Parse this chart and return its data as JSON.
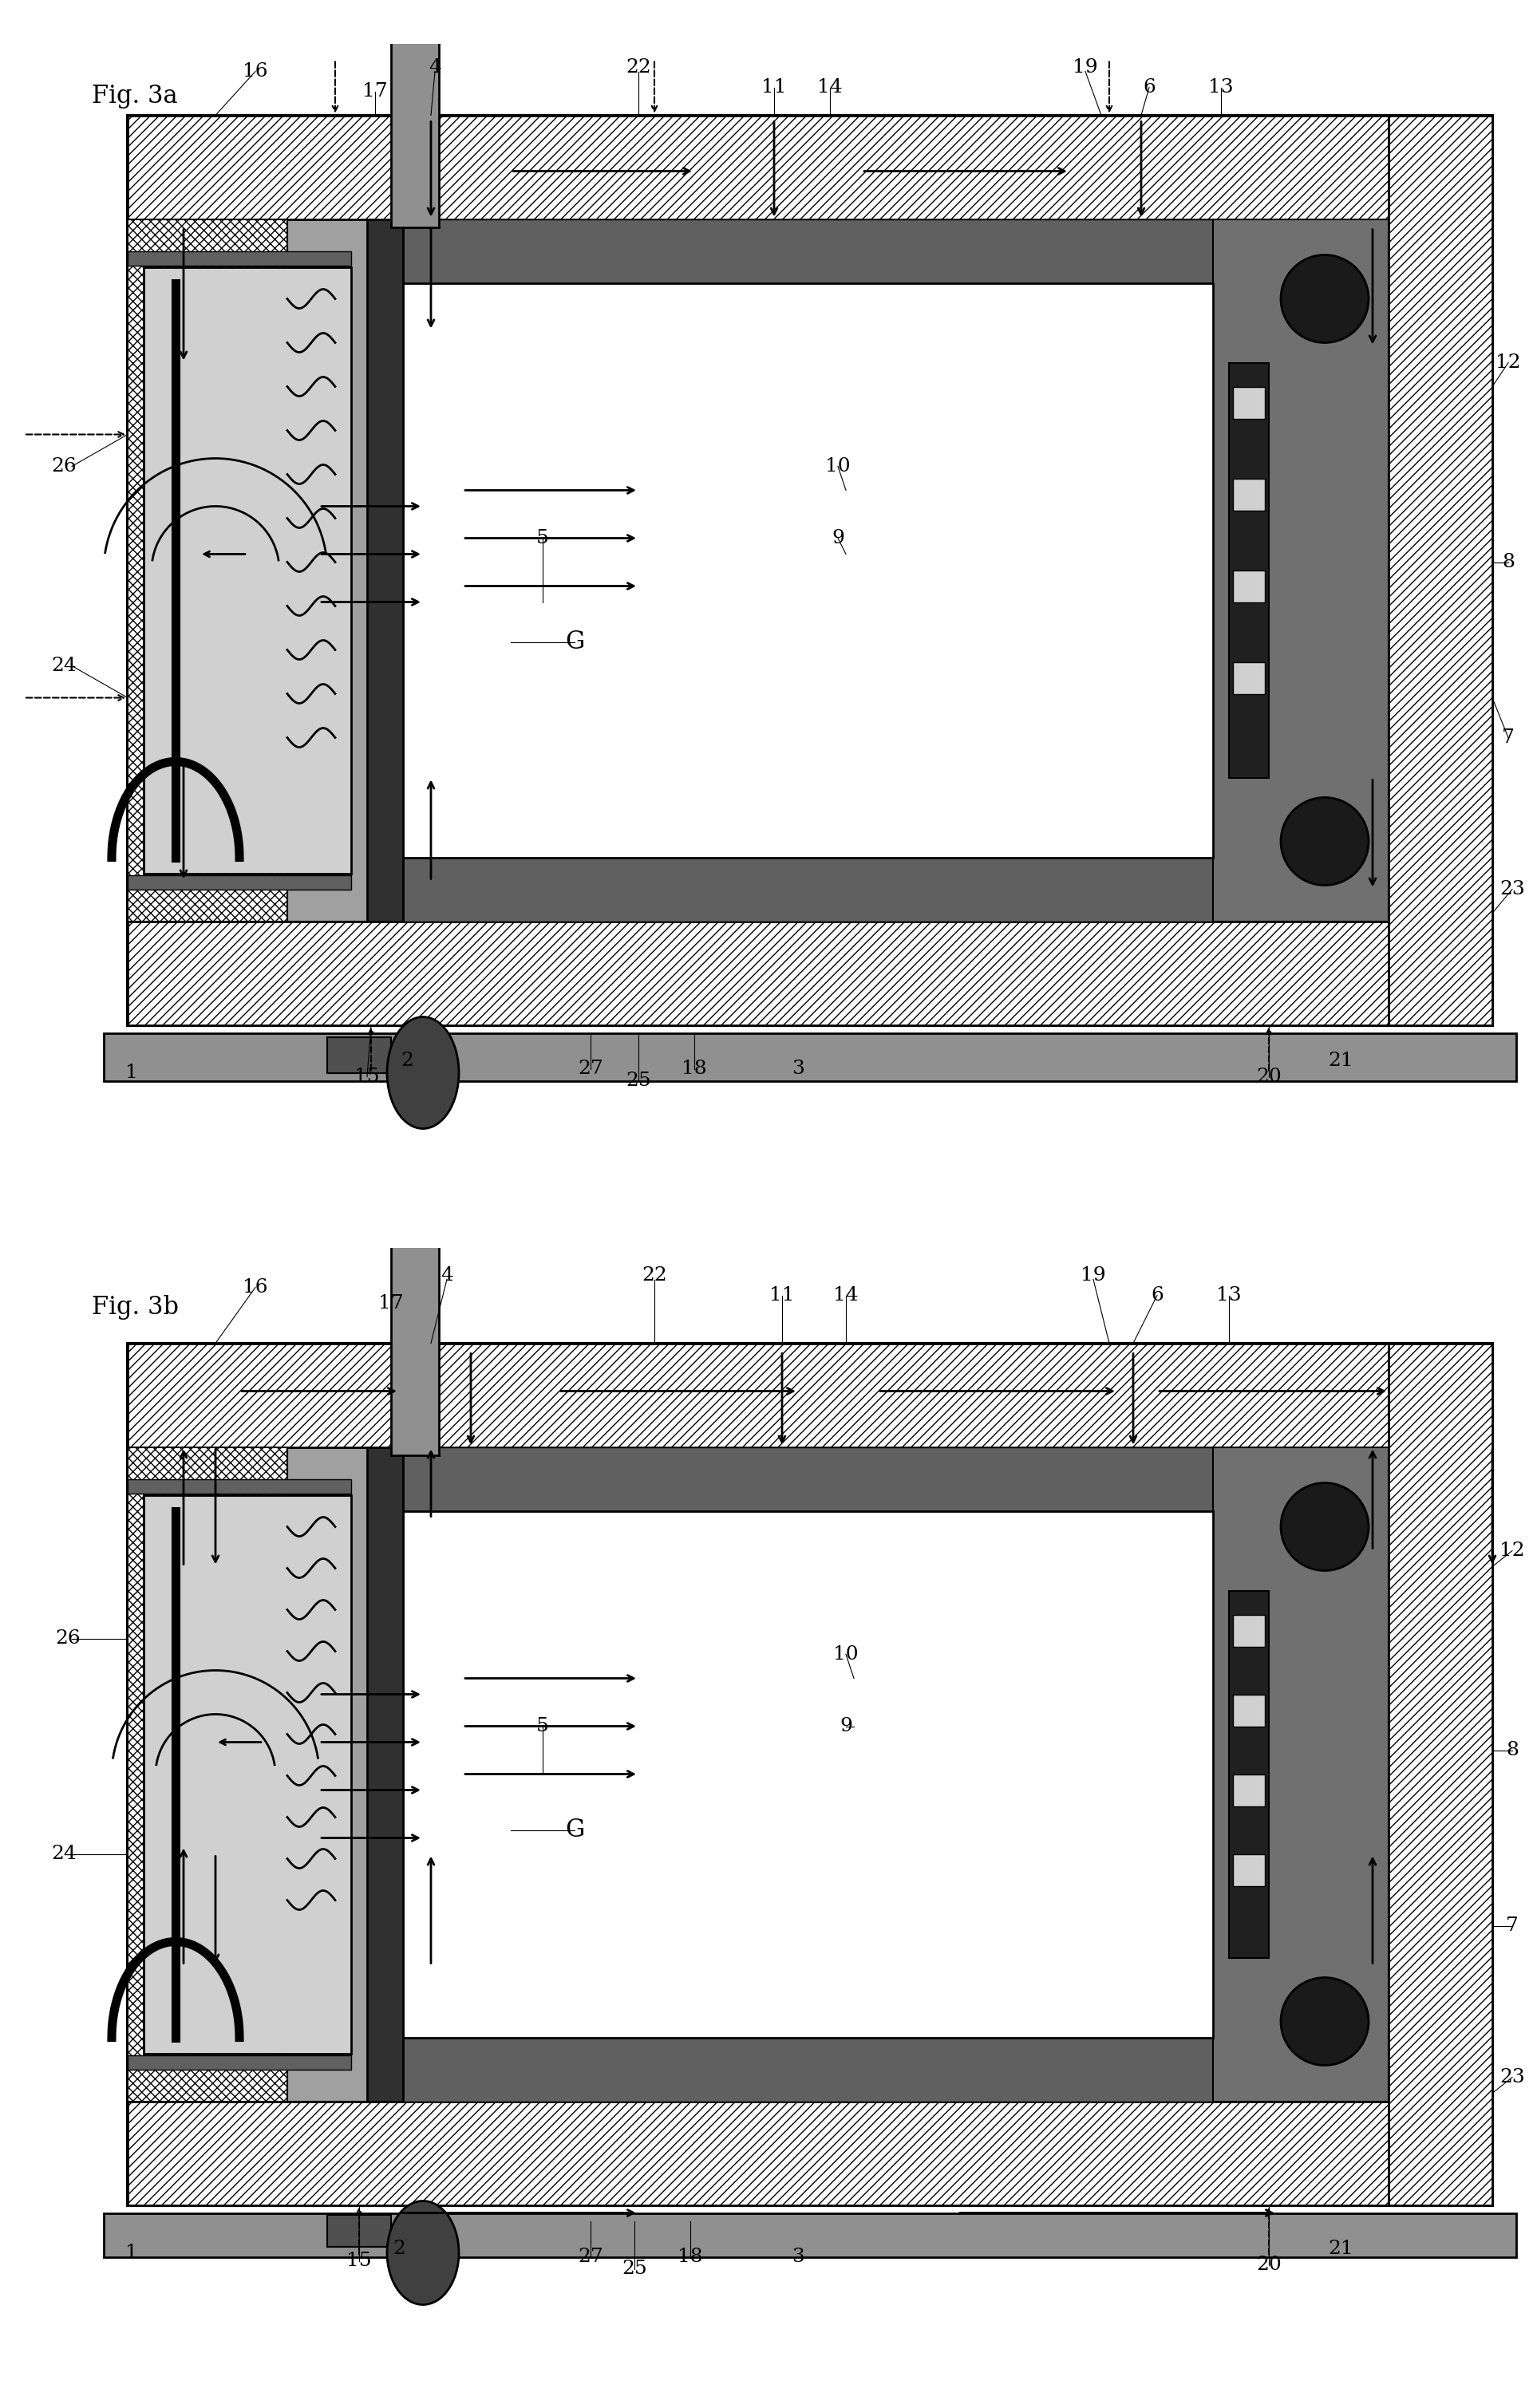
{
  "title_3a": "Fig. 3a",
  "title_3b": "Fig. 3b",
  "bg_color": "#ffffff",
  "hatch_diag": "///",
  "hatch_cross": "xxx",
  "c_white": "#ffffff",
  "c_black": "#000000",
  "c_light_gray": "#cccccc",
  "c_medium_gray": "#888888",
  "c_dark_gray": "#555555",
  "c_stipple": "#999999",
  "c_very_dark": "#333333",
  "c_bar": "#444444"
}
